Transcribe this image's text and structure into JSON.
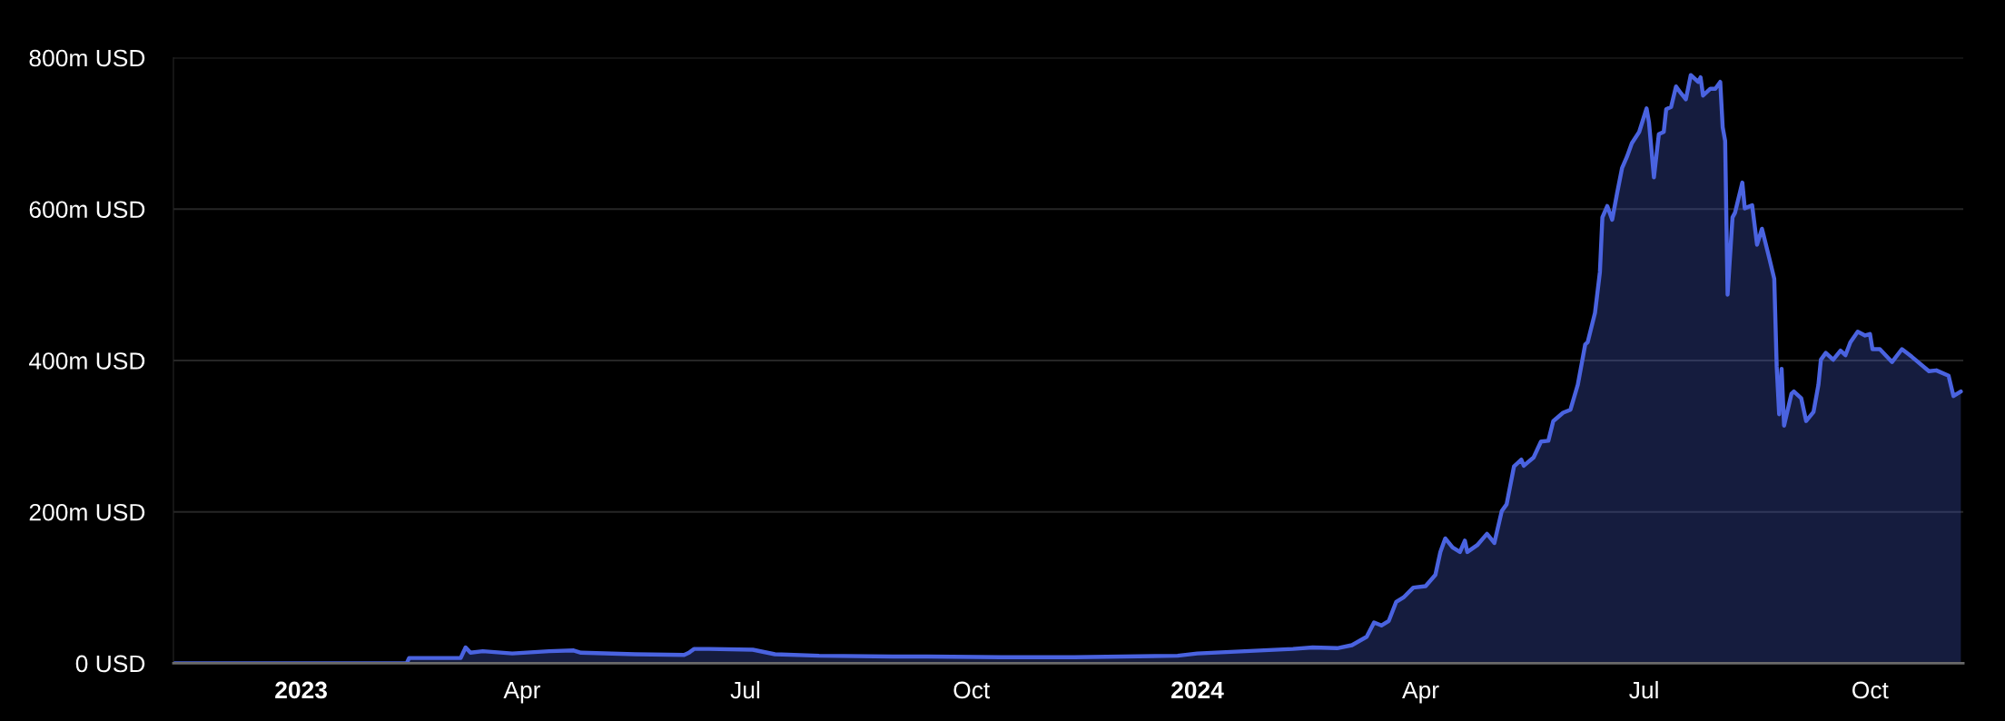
{
  "chart_data": {
    "type": "area",
    "x": [
      "2022-11-10",
      "2023-02-13",
      "2023-02-14",
      "2023-03-07",
      "2023-03-09",
      "2023-03-11",
      "2023-03-16",
      "2023-03-28",
      "2023-04-12",
      "2023-04-22",
      "2023-04-25",
      "2023-05-17",
      "2023-06-06",
      "2023-06-08",
      "2023-06-10",
      "2023-06-16",
      "2023-07-04",
      "2023-07-13",
      "2023-07-31",
      "2023-08-30",
      "2023-09-13",
      "2023-10-13",
      "2023-11-12",
      "2023-12-24",
      "2024-01-01",
      "2024-02-09",
      "2024-02-17",
      "2024-02-27",
      "2024-03-04",
      "2024-03-10",
      "2024-03-13",
      "2024-03-16",
      "2024-03-19",
      "2024-03-22",
      "2024-03-25",
      "2024-03-29",
      "2024-04-03",
      "2024-04-07",
      "2024-04-09",
      "2024-04-11",
      "2024-04-14",
      "2024-04-17",
      "2024-04-19",
      "2024-04-20",
      "2024-04-24",
      "2024-04-28",
      "2024-05-01",
      "2024-05-04",
      "2024-05-06",
      "2024-05-09",
      "2024-05-12",
      "2024-05-13",
      "2024-05-17",
      "2024-05-20",
      "2024-05-23",
      "2024-05-25",
      "2024-05-29",
      "2024-06-01",
      "2024-06-04",
      "2024-06-07",
      "2024-06-08",
      "2024-06-11",
      "2024-06-13",
      "2024-06-14",
      "2024-06-16",
      "2024-06-18",
      "2024-06-20",
      "2024-06-22",
      "2024-06-24",
      "2024-06-26",
      "2024-06-29",
      "2024-07-02",
      "2024-07-03",
      "2024-07-05",
      "2024-07-07",
      "2024-07-09",
      "2024-07-10",
      "2024-07-12",
      "2024-07-14",
      "2024-07-16",
      "2024-07-18",
      "2024-07-20",
      "2024-07-23",
      "2024-07-24",
      "2024-07-25",
      "2024-07-28",
      "2024-07-30",
      "2024-08-01",
      "2024-08-02",
      "2024-08-03",
      "2024-08-04",
      "2024-08-06",
      "2024-08-07",
      "2024-08-10",
      "2024-08-11",
      "2024-08-14",
      "2024-08-16",
      "2024-08-18",
      "2024-08-21",
      "2024-08-23",
      "2024-08-24",
      "2024-08-25",
      "2024-08-26",
      "2024-08-27",
      "2024-08-30",
      "2024-08-31",
      "2024-09-03",
      "2024-09-05",
      "2024-09-08",
      "2024-09-10",
      "2024-09-11",
      "2024-09-13",
      "2024-09-16",
      "2024-09-19",
      "2024-09-21",
      "2024-09-23",
      "2024-09-26",
      "2024-09-29",
      "2024-10-01",
      "2024-10-02",
      "2024-10-05",
      "2024-10-10",
      "2024-10-14",
      "2024-10-18",
      "2024-10-25",
      "2024-10-28",
      "2024-11-02",
      "2024-11-04",
      "2024-11-07"
    ],
    "series": [
      {
        "color": "#4a63e0",
        "values": [
          0,
          0,
          7,
          7,
          21,
          14,
          16,
          13,
          16,
          17,
          14,
          12,
          11,
          14,
          19,
          19,
          18,
          12,
          10,
          9,
          9,
          8,
          8,
          10,
          13,
          19,
          21,
          20,
          24,
          35,
          54,
          50,
          56,
          81,
          87,
          100,
          102,
          117,
          147,
          165,
          153,
          147,
          162,
          147,
          156,
          171,
          159,
          201,
          210,
          260,
          269,
          261,
          272,
          293,
          294,
          320,
          331,
          335,
          368,
          421,
          424,
          463,
          517,
          589,
          604,
          586,
          621,
          654,
          669,
          687,
          702,
          733,
          714,
          642,
          699,
          702,
          732,
          735,
          762,
          753,
          745,
          777,
          768,
          774,
          750,
          759,
          759,
          768,
          708,
          690,
          487,
          589,
          595,
          635,
          601,
          605,
          553,
          574,
          535,
          508,
          392,
          329,
          389,
          314,
          356,
          359,
          350,
          320,
          332,
          368,
          401,
          410,
          401,
          413,
          407,
          424,
          438,
          433,
          435,
          415,
          415,
          398,
          415,
          405,
          386,
          387,
          380,
          353,
          359
        ]
      }
    ],
    "xlim": [
      "2022-11-10",
      "2024-11-08"
    ],
    "xticks": [
      {
        "value": "2023-01-01",
        "label": "2023"
      },
      {
        "value": "2023-04-01",
        "label": "Apr"
      },
      {
        "value": "2023-07-01",
        "label": "Jul"
      },
      {
        "value": "2023-10-01",
        "label": "Oct"
      },
      {
        "value": "2024-01-01",
        "label": "2024"
      },
      {
        "value": "2024-04-01",
        "label": "Apr"
      },
      {
        "value": "2024-07-01",
        "label": "Jul"
      },
      {
        "value": "2024-10-01",
        "label": "Oct"
      }
    ],
    "ylim": [
      0,
      800
    ],
    "yticks": [
      {
        "value": 0,
        "label": "0 USD"
      },
      {
        "value": 200,
        "label": "200m USD"
      },
      {
        "value": 400,
        "label": "400m USD"
      },
      {
        "value": 600,
        "label": "600m USD"
      },
      {
        "value": 800,
        "label": "800m USD"
      }
    ],
    "grid": "y"
  }
}
